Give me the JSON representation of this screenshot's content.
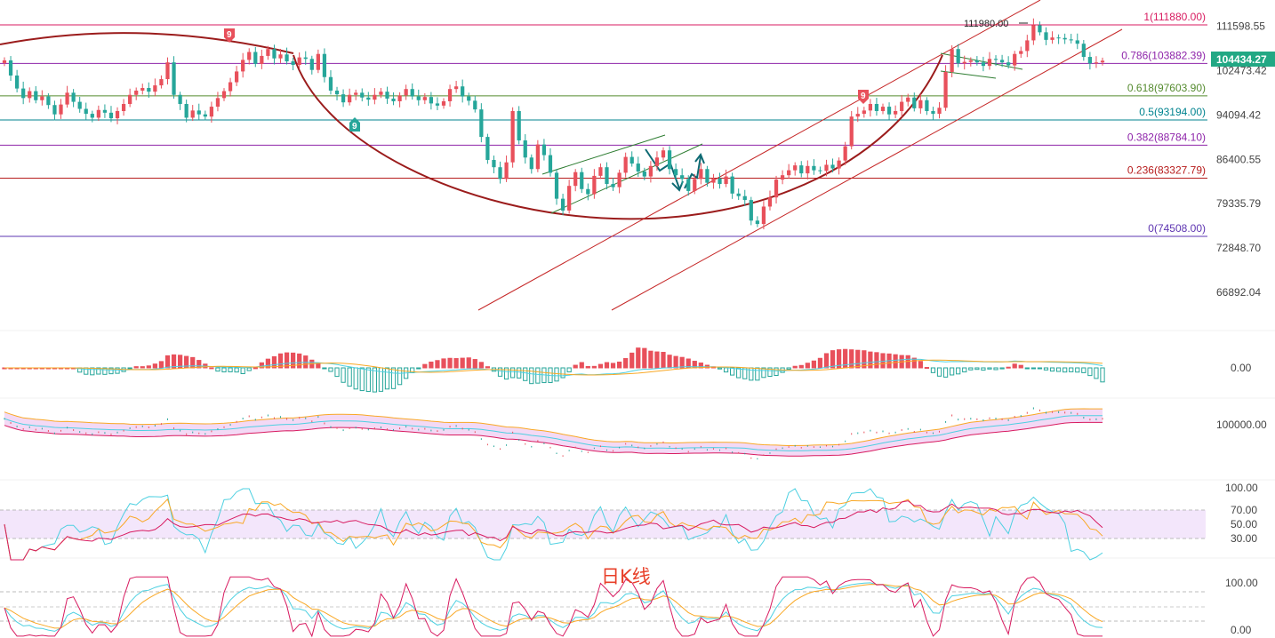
{
  "chart_title": "日K线",
  "current_price": "104434.27",
  "colors": {
    "up": "#e8505b",
    "down": "#26a69a",
    "fib_1": "#d81b60",
    "fib_0786": "#8e24aa",
    "fib_0618": "#558b2f",
    "fib_05": "#00838f",
    "fib_0382": "#8e24aa",
    "fib_0236": "#b71c1c",
    "fib_0": "#5e35b1",
    "cup": "#9b1c1c",
    "channel": "#c62828",
    "wedge": "#2e7d32",
    "price_tag": "#22a884"
  },
  "price_axis": [
    "111598.55",
    "102473.42",
    "94094.42",
    "86400.55",
    "79335.79",
    "72848.70",
    "66892.04"
  ],
  "fib_levels": [
    {
      "ratio": "1",
      "price": "111880.00",
      "label": "1(111880.00)"
    },
    {
      "ratio": "0.786",
      "price": "103882.39",
      "label": "0.786(103882.39)"
    },
    {
      "ratio": "0.618",
      "price": "97603.90",
      "label": "0.618(97603.90)"
    },
    {
      "ratio": "0.5",
      "price": "93194.00",
      "label": "0.5(93194.00)"
    },
    {
      "ratio": "0.382",
      "price": "88784.10",
      "label": "0.382(88784.10)"
    },
    {
      "ratio": "0.236",
      "price": "83327.79",
      "label": "0.236(83327.79)"
    },
    {
      "ratio": "0",
      "price": "74508.00",
      "label": "0(74508.00)"
    }
  ],
  "high_annotation": "111980.00",
  "td_badges": [
    "9",
    "9",
    "9"
  ],
  "macd_axis": [
    "0.00"
  ],
  "boll_axis": [
    "100000.00"
  ],
  "rsi_axis": [
    "100.00",
    "70.00",
    "50.00",
    "30.00"
  ],
  "kdj_axis": [
    "100.00",
    "0.00"
  ],
  "chart_data": {
    "type": "candlestick",
    "title": "日K线",
    "ylim": [
      65000,
      116000
    ],
    "fib_retracement": {
      "high": 111880.0,
      "low": 74508.0
    },
    "closes": [
      104500,
      101500,
      99000,
      97200,
      98500,
      96800,
      97500,
      95900,
      94200,
      96000,
      98200,
      96500,
      95200,
      94300,
      93600,
      95000,
      94500,
      93500,
      94800,
      96100,
      97800,
      98600,
      99100,
      98400,
      99600,
      100800,
      104100,
      97800,
      96100,
      93600,
      94900,
      94200,
      93800,
      95600,
      97200,
      98500,
      100200,
      102300,
      104600,
      106200,
      103800,
      105400,
      106800,
      104900,
      105700,
      104300,
      103600,
      105100,
      104800,
      102600,
      105800,
      101200,
      98600,
      97900,
      96400,
      97800,
      98200,
      97300,
      96900,
      97800,
      98400,
      97100,
      96600,
      97700,
      98900,
      97500,
      96800,
      97400,
      96200,
      95800,
      96600,
      98900,
      99400,
      97500,
      96700,
      95100,
      90200,
      86300,
      85100,
      83200,
      85900,
      94800,
      89600,
      86700,
      84800,
      88900,
      87100,
      84200,
      80100,
      78300,
      82100,
      84300,
      81600,
      80800,
      83700,
      85100,
      82400,
      81900,
      84200,
      86800,
      85700,
      84400,
      83600,
      85300,
      86700,
      87900,
      84800,
      83800,
      83200,
      81300,
      83200,
      84800,
      82600,
      83300,
      82400,
      83600,
      80900,
      80500,
      79900,
      76800,
      76300,
      78900,
      80300,
      83100,
      83800,
      84600,
      85400,
      84100,
      85300,
      84600,
      84500,
      85500,
      84900,
      86200,
      88600,
      93800,
      94300,
      94900,
      96100,
      94800,
      95600,
      94200,
      94800,
      96500,
      97300,
      95300,
      96800,
      94800,
      94300,
      95400,
      102200,
      106800,
      103900,
      104200,
      104500,
      104100,
      103400,
      104800,
      104600,
      104100,
      103500,
      105800,
      106400,
      108600,
      111800,
      110300,
      108700,
      109200,
      109100,
      108800,
      108600,
      107900,
      105200,
      103900,
      104100,
      104434
    ]
  }
}
